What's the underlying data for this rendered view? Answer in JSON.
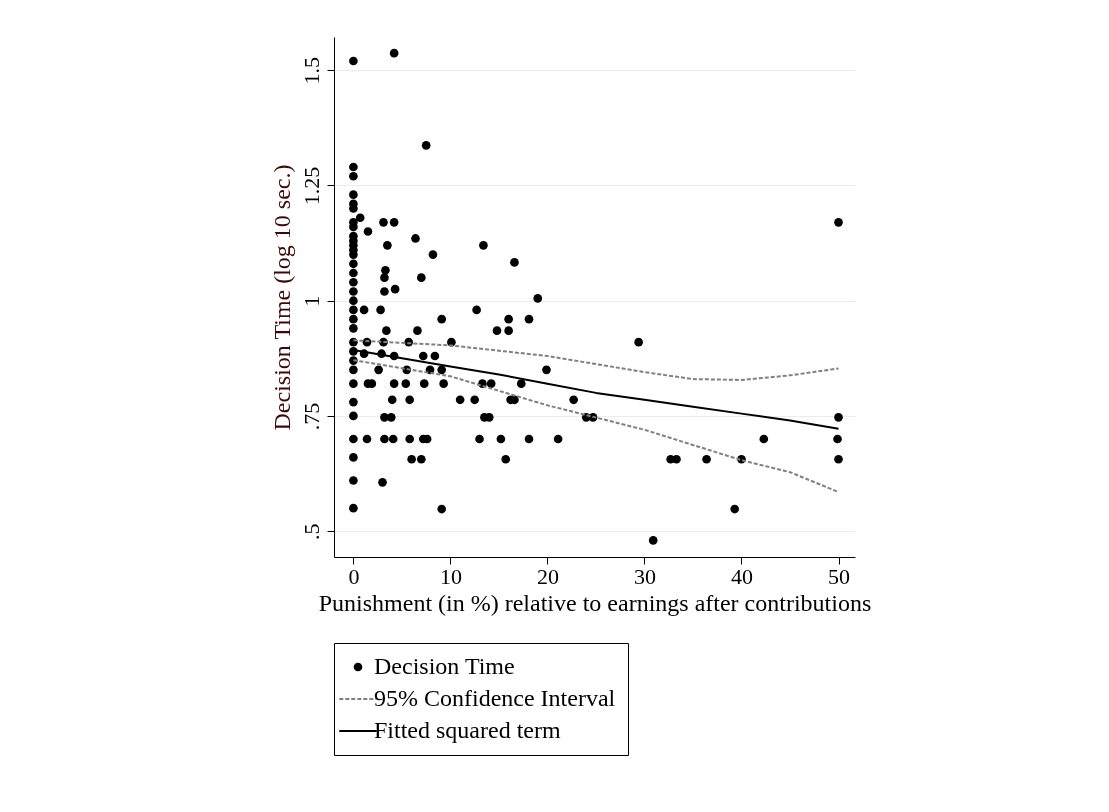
{
  "chart_data": {
    "type": "scatter",
    "xlabel": "Punishment (in %) relative to earnings after contributions",
    "ylabel": "Decision Time (log 10 sec.)",
    "xlim": [
      -2,
      51.7
    ],
    "xticks": [
      0,
      10,
      20,
      30,
      40,
      50
    ],
    "ylim": [
      0.444,
      1.572
    ],
    "yticks": [
      {
        "value": 0.5,
        "label": ".5"
      },
      {
        "value": 0.75,
        "label": ".75"
      },
      1,
      1.25,
      1.5
    ],
    "grid": "y",
    "legend": "bottom",
    "series": [
      {
        "name": "Decision Time",
        "marker": "circle",
        "color": "#000000",
        "x": [
          0,
          0,
          0,
          0,
          0,
          0,
          0,
          0,
          0,
          0,
          0,
          0,
          0,
          0,
          0,
          0,
          0,
          0,
          0,
          0,
          0,
          0,
          0,
          0,
          0,
          0,
          0,
          0,
          0,
          0,
          0,
          0,
          4.2,
          7.5,
          0.7,
          1.5,
          3.1,
          4.2,
          3.5,
          6.4,
          8.2,
          13.4,
          16.6,
          3.3,
          3.2,
          7.0,
          3.2,
          4.3,
          19,
          1.1,
          2.8,
          12.7,
          9.1,
          18.1,
          16,
          3.4,
          6.6,
          14.8,
          16,
          1.4,
          3.1,
          5.7,
          10.1,
          29.4,
          50,
          1.1,
          2.9,
          4.2,
          7.2,
          8.4,
          5.5,
          7.9,
          9.1,
          19.9,
          2.6,
          4.2,
          1.5,
          1.9,
          5.4,
          7.3,
          9.3,
          13.3,
          14.2,
          17.3,
          4,
          5.8,
          11,
          12.5,
          16.2,
          16.6,
          22.7,
          3.2,
          3.9,
          13.5,
          14,
          24,
          24.7,
          50,
          1.4,
          3.2,
          4.1,
          5.8,
          7.2,
          7.6,
          13,
          15.2,
          18.1,
          21.1,
          42.3,
          49.9,
          6,
          7,
          15.7,
          32.7,
          33.3,
          36.4,
          40,
          50,
          3,
          9.1,
          39.3,
          30.9
        ],
        "values": [
          1.52,
          1.29,
          1.27,
          1.23,
          1.21,
          1.2,
          1.17,
          1.16,
          1.14,
          1.13,
          1.12,
          1.11,
          1.1,
          1.08,
          1.06,
          1.04,
          1.02,
          1.0,
          0.98,
          0.96,
          0.94,
          0.91,
          0.89,
          0.87,
          0.85,
          0.82,
          0.78,
          0.75,
          0.7,
          0.66,
          0.61,
          0.55,
          1.537,
          1.337,
          1.18,
          1.15,
          1.17,
          1.17,
          1.12,
          1.135,
          1.1,
          1.12,
          1.083,
          1.066,
          1.05,
          1.05,
          1.02,
          1.025,
          1.005,
          0.98,
          0.98,
          0.98,
          0.96,
          0.96,
          0.96,
          0.935,
          0.935,
          0.935,
          0.935,
          0.91,
          0.91,
          0.91,
          0.91,
          0.91,
          1.17,
          0.885,
          0.885,
          0.88,
          0.88,
          0.88,
          0.85,
          0.85,
          0.85,
          0.85,
          0.85,
          0.82,
          0.82,
          0.82,
          0.82,
          0.82,
          0.82,
          0.82,
          0.82,
          0.82,
          0.785,
          0.785,
          0.785,
          0.785,
          0.785,
          0.785,
          0.785,
          0.747,
          0.747,
          0.747,
          0.747,
          0.747,
          0.747,
          0.747,
          0.7,
          0.7,
          0.7,
          0.7,
          0.7,
          0.7,
          0.7,
          0.7,
          0.7,
          0.7,
          0.7,
          0.7,
          0.656,
          0.656,
          0.656,
          0.656,
          0.656,
          0.656,
          0.656,
          0.656,
          0.606,
          0.548,
          0.548,
          0.48
        ]
      },
      {
        "name": "95% Confidence Interval",
        "type": "line",
        "line_style": "dashed",
        "color": "#808080",
        "x": [
          0,
          10,
          20,
          30,
          35,
          40,
          45,
          50
        ],
        "values": [
          0.914,
          0.903,
          0.88,
          0.845,
          0.83,
          0.828,
          0.838,
          0.853
        ]
      },
      {
        "type": "line",
        "line_style": "dashed",
        "color": "#808080",
        "x": [
          0,
          10,
          20,
          30,
          40,
          45,
          50
        ],
        "values": [
          0.871,
          0.836,
          0.773,
          0.72,
          0.654,
          0.628,
          0.585
        ]
      },
      {
        "name": "Fitted squared term",
        "type": "line",
        "line_style": "solid",
        "color": "#000000",
        "x": [
          0,
          5,
          10,
          15,
          20,
          25,
          30,
          35,
          40,
          45,
          50
        ],
        "values": [
          0.893,
          0.875,
          0.857,
          0.84,
          0.82,
          0.8,
          0.785,
          0.77,
          0.755,
          0.74,
          0.722
        ]
      }
    ]
  }
}
